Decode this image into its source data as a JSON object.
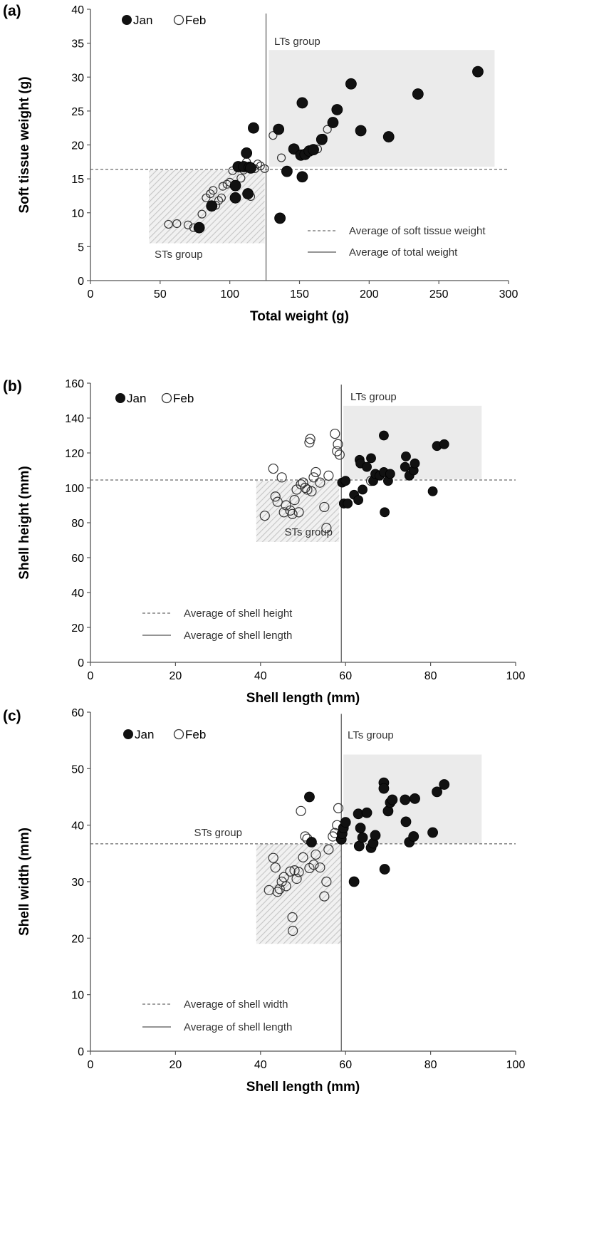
{
  "chart_data": [
    {
      "type": "scatter",
      "panel": "(a)",
      "xlabel": "Total weight (g)",
      "ylabel": "Soft tissue weight (g)",
      "xlim": [
        0,
        300
      ],
      "xticks": [
        0,
        50,
        100,
        150,
        200,
        250,
        300
      ],
      "ylim": [
        0,
        40
      ],
      "yticks": [
        0,
        5,
        10,
        15,
        20,
        25,
        30,
        35,
        40
      ],
      "ref_h": 16.4,
      "ref_v": 126,
      "lts_region": {
        "x": [
          128,
          290
        ],
        "y": [
          16.8,
          34
        ]
      },
      "sts_region": {
        "x": [
          42,
          125
        ],
        "y": [
          5.5,
          16.3
        ]
      },
      "lts_label": "LTs group",
      "sts_label": "STs group",
      "legend_position": "top-left",
      "series": [
        {
          "name": "Jan",
          "marker": "filled",
          "radius": 7.5,
          "points": [
            [
              78,
              7.8
            ],
            [
              87,
              11
            ],
            [
              104,
              14
            ],
            [
              104,
              12.2
            ],
            [
              106,
              16.8
            ],
            [
              110,
              16.8
            ],
            [
              112,
              18.8
            ],
            [
              113,
              12.8
            ],
            [
              114,
              16.7
            ],
            [
              115,
              16.6
            ],
            [
              117,
              22.5
            ],
            [
              135,
              22.3
            ],
            [
              136,
              9.2
            ],
            [
              141,
              16.1
            ],
            [
              146,
              19.4
            ],
            [
              151,
              18.5
            ],
            [
              152,
              26.2
            ],
            [
              152,
              15.3
            ],
            [
              154,
              18.6
            ],
            [
              157,
              19.1
            ],
            [
              160,
              19.3
            ],
            [
              166,
              20.8
            ],
            [
              174,
              23.3
            ],
            [
              177,
              25.2
            ],
            [
              187,
              29
            ],
            [
              194,
              22.1
            ],
            [
              214,
              21.2
            ],
            [
              235,
              27.5
            ],
            [
              278,
              30.8
            ]
          ]
        },
        {
          "name": "Feb",
          "marker": "open",
          "radius": 5.5,
          "points": [
            [
              56,
              8.3
            ],
            [
              62,
              8.4
            ],
            [
              70,
              8.2
            ],
            [
              74,
              7.8
            ],
            [
              80,
              9.8
            ],
            [
              83,
              12.2
            ],
            [
              86,
              12.8
            ],
            [
              88,
              13.3
            ],
            [
              90,
              11.1
            ],
            [
              92,
              11.8
            ],
            [
              94,
              12.2
            ],
            [
              95,
              13.9
            ],
            [
              98,
              14.2
            ],
            [
              100,
              14.5
            ],
            [
              102,
              16.2
            ],
            [
              106,
              16.8
            ],
            [
              108,
              15.1
            ],
            [
              110,
              16.3
            ],
            [
              112,
              17.5
            ],
            [
              115,
              12.4
            ],
            [
              118,
              16.5
            ],
            [
              120,
              17.2
            ],
            [
              122,
              16.9
            ],
            [
              125,
              16.5
            ],
            [
              131,
              21.4
            ],
            [
              137,
              18.1
            ],
            [
              158,
              19.2
            ],
            [
              163,
              19.4
            ],
            [
              167,
              21
            ],
            [
              170,
              22.3
            ]
          ]
        }
      ],
      "annotations": [
        {
          "text": "Average of soft tissue weight",
          "line": "dashed"
        },
        {
          "text": "Average of total weight",
          "line": "solid"
        }
      ]
    },
    {
      "type": "scatter",
      "panel": "(b)",
      "xlabel": "Shell length (mm)",
      "ylabel": "Shell height (mm)",
      "xlim": [
        0,
        100
      ],
      "xticks": [
        0,
        20,
        40,
        60,
        80,
        100
      ],
      "ylim": [
        0,
        160
      ],
      "yticks": [
        0,
        20,
        40,
        60,
        80,
        100,
        120,
        140,
        160
      ],
      "ref_h": 104.5,
      "ref_v": 59,
      "lts_region": {
        "x": [
          59.5,
          92
        ],
        "y": [
          105,
          147
        ]
      },
      "sts_region": {
        "x": [
          39,
          58.5
        ],
        "y": [
          69,
          104
        ]
      },
      "lts_label": "LTs group",
      "sts_label": "STs group",
      "legend_position": "top-left",
      "series": [
        {
          "name": "Jan",
          "marker": "filled",
          "radius": 6.5,
          "points": [
            [
              59.2,
              103
            ],
            [
              59.6,
              91
            ],
            [
              60,
              104
            ],
            [
              60.5,
              91
            ],
            [
              62,
              96
            ],
            [
              63,
              93
            ],
            [
              63.3,
              116
            ],
            [
              63.5,
              114
            ],
            [
              64,
              99
            ],
            [
              65,
              112
            ],
            [
              66,
              117
            ],
            [
              66.5,
              104
            ],
            [
              67,
              108
            ],
            [
              68,
              107
            ],
            [
              69,
              130
            ],
            [
              69,
              109
            ],
            [
              69.2,
              86
            ],
            [
              70,
              104
            ],
            [
              70.5,
              108
            ],
            [
              74,
              112
            ],
            [
              74.2,
              118
            ],
            [
              75,
              107
            ],
            [
              76,
              110
            ],
            [
              76.3,
              114
            ],
            [
              80.5,
              98
            ],
            [
              81.5,
              124
            ],
            [
              83.2,
              125
            ]
          ]
        },
        {
          "name": "Feb",
          "marker": "open",
          "radius": 6.5,
          "points": [
            [
              41,
              84
            ],
            [
              43,
              111
            ],
            [
              43.5,
              95
            ],
            [
              44,
              92
            ],
            [
              45,
              106
            ],
            [
              45.5,
              86
            ],
            [
              46,
              90
            ],
            [
              47,
              87
            ],
            [
              47.5,
              85
            ],
            [
              48,
              93
            ],
            [
              48.5,
              99
            ],
            [
              49,
              86
            ],
            [
              49.5,
              102
            ],
            [
              50,
              103
            ],
            [
              50.5,
              100
            ],
            [
              51,
              99
            ],
            [
              51.5,
              126
            ],
            [
              51.7,
              128
            ],
            [
              52,
              98
            ],
            [
              52.5,
              106
            ],
            [
              53,
              109
            ],
            [
              54,
              103
            ],
            [
              55,
              89
            ],
            [
              55.5,
              77
            ],
            [
              56,
              107
            ],
            [
              57.5,
              131
            ],
            [
              58,
              121
            ],
            [
              58.2,
              125
            ],
            [
              58.6,
              119
            ],
            [
              66,
              104
            ]
          ]
        }
      ],
      "annotations": [
        {
          "text": "Average of shell height",
          "line": "dashed"
        },
        {
          "text": "Average of shell length",
          "line": "solid"
        }
      ]
    },
    {
      "type": "scatter",
      "panel": "(c)",
      "xlabel": "Shell length (mm)",
      "ylabel": "Shell width (mm)",
      "xlim": [
        0,
        100
      ],
      "xticks": [
        0,
        20,
        40,
        60,
        80,
        100
      ],
      "ylim": [
        0,
        60
      ],
      "yticks": [
        0,
        10,
        20,
        30,
        40,
        50,
        60
      ],
      "ref_h": 36.7,
      "ref_v": 59,
      "lts_region": {
        "x": [
          59.5,
          92
        ],
        "y": [
          36.8,
          52.5
        ]
      },
      "sts_region": {
        "x": [
          39,
          59
        ],
        "y": [
          19,
          36.7
        ]
      },
      "lts_label": "LTs group",
      "sts_label": "STs group",
      "legend_position": "top-left",
      "series": [
        {
          "name": "Jan",
          "marker": "filled",
          "radius": 7,
          "points": [
            [
              51.5,
              45
            ],
            [
              52,
              37
            ],
            [
              59,
              37.5
            ],
            [
              59.2,
              38.5
            ],
            [
              59.5,
              39.5
            ],
            [
              60,
              40.5
            ],
            [
              62,
              30
            ],
            [
              63,
              42
            ],
            [
              63.2,
              36.3
            ],
            [
              63.5,
              39.5
            ],
            [
              64,
              37.8
            ],
            [
              65,
              42.2
            ],
            [
              66,
              36
            ],
            [
              66.5,
              36.8
            ],
            [
              67,
              38.2
            ],
            [
              69,
              47.5
            ],
            [
              69,
              46.5
            ],
            [
              69.2,
              32.2
            ],
            [
              70,
              42.5
            ],
            [
              70.5,
              44
            ],
            [
              71,
              44.5
            ],
            [
              74,
              44.5
            ],
            [
              74.2,
              40.6
            ],
            [
              75,
              37
            ],
            [
              76,
              38
            ],
            [
              76.3,
              44.7
            ],
            [
              80.5,
              38.7
            ],
            [
              81.5,
              45.9
            ],
            [
              83.2,
              47.2
            ]
          ]
        },
        {
          "name": "Feb",
          "marker": "open",
          "radius": 6.5,
          "points": [
            [
              42,
              28.5
            ],
            [
              43,
              34.2
            ],
            [
              43.5,
              32.5
            ],
            [
              44,
              28.2
            ],
            [
              44.5,
              28.7
            ],
            [
              45,
              30
            ],
            [
              45.5,
              30.8
            ],
            [
              46,
              29.2
            ],
            [
              47,
              31.8
            ],
            [
              47.5,
              23.7
            ],
            [
              47.6,
              21.3
            ],
            [
              48,
              32
            ],
            [
              48.5,
              30.5
            ],
            [
              49,
              31.7
            ],
            [
              49.5,
              42.5
            ],
            [
              50,
              34.3
            ],
            [
              50.5,
              38
            ],
            [
              51,
              37.6
            ],
            [
              51.5,
              32.4
            ],
            [
              52,
              37
            ],
            [
              52.5,
              33
            ],
            [
              53,
              34.8
            ],
            [
              54,
              32.5
            ],
            [
              55,
              27.4
            ],
            [
              55.5,
              30
            ],
            [
              56,
              35.7
            ],
            [
              57,
              38
            ],
            [
              57.5,
              38.6
            ],
            [
              58,
              40
            ],
            [
              58.3,
              43
            ]
          ]
        }
      ],
      "annotations": [
        {
          "text": "Average of shell width",
          "line": "dashed"
        },
        {
          "text": "Average of shell length",
          "line": "solid"
        }
      ]
    }
  ]
}
